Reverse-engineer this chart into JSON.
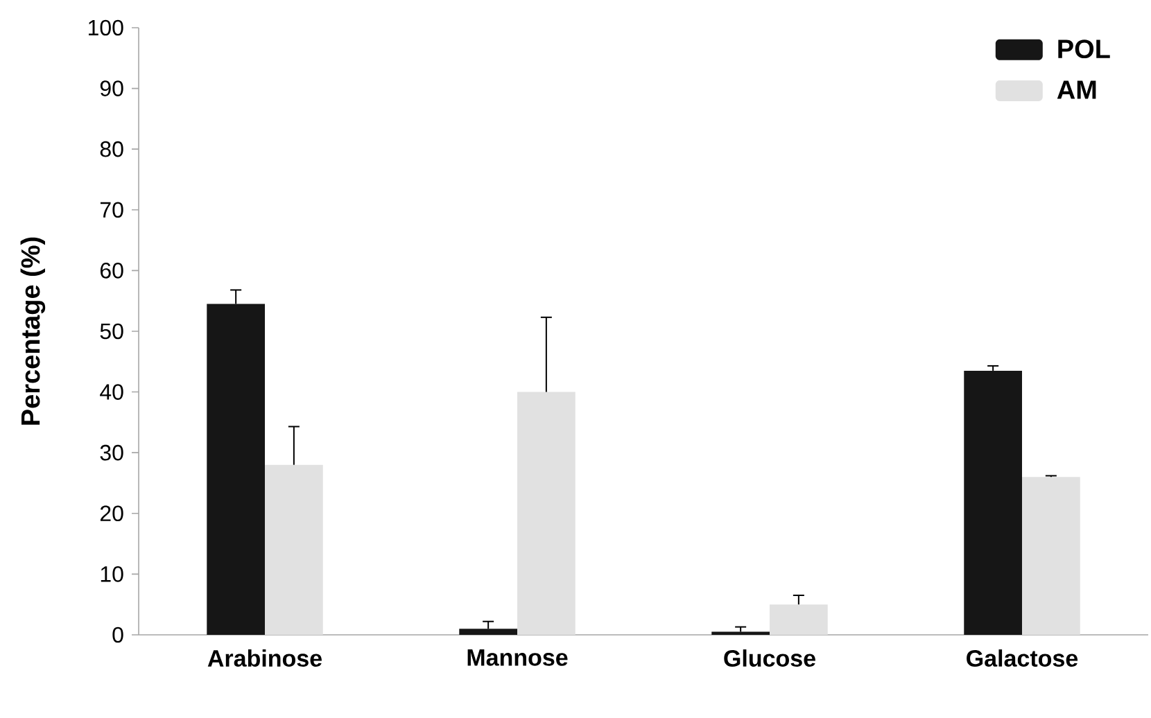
{
  "chart_data": {
    "type": "bar",
    "ylabel": "Percentage (%)",
    "categories": [
      "Arabinose",
      "Mannose",
      "Glucose",
      "Galactose"
    ],
    "series": [
      {
        "name": "POL",
        "color": "#161616",
        "values": [
          54.5,
          1,
          0.5,
          43.5
        ],
        "errors": [
          [
            54.5,
            56.8
          ],
          [
            1,
            2.2
          ],
          [
            0.5,
            1.3
          ],
          [
            43.5,
            44.3
          ]
        ]
      },
      {
        "name": "AM",
        "color": "#e1e1e1",
        "values": [
          28,
          40,
          5,
          26
        ],
        "errors": [
          [
            28,
            34.3
          ],
          [
            40,
            52.3
          ],
          [
            5,
            6.5
          ],
          [
            26,
            26.2
          ]
        ]
      }
    ],
    "ylim": [
      0,
      100
    ],
    "yticks": [
      0,
      10,
      20,
      30,
      40,
      50,
      60,
      70,
      80,
      90,
      100
    ],
    "grid": false,
    "legend": "top right"
  }
}
